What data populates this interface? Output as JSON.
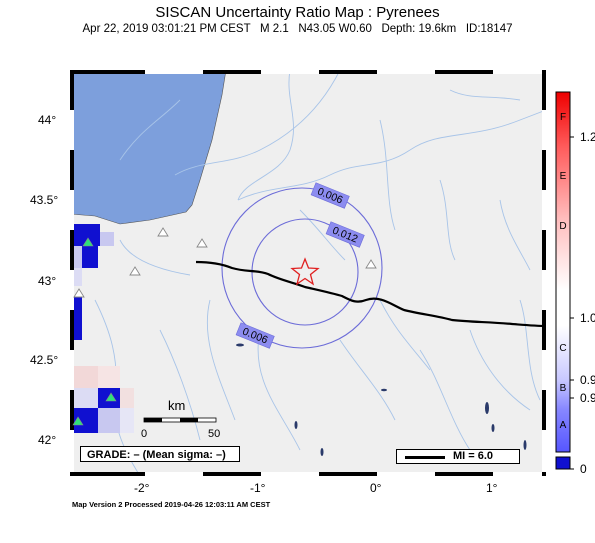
{
  "header": {
    "title": "SISCAN Uncertainty Ratio Map : Pyrenees",
    "subtitle": "Apr 22, 2019 03:01:21 PM CEST   M 2.1   N43.05 W0.60   Depth: 19.6km   ID:18147"
  },
  "axes": {
    "lat_labels": [
      "44°",
      "43.5°",
      "43°",
      "42.5°",
      "42°"
    ],
    "lon_labels": [
      "-2°",
      "-1°",
      "0°",
      "1°"
    ]
  },
  "contours": [
    {
      "label": "0.006"
    },
    {
      "label": "0.012"
    },
    {
      "label": "0.006"
    }
  ],
  "scale_bar": {
    "unit": "km",
    "min_label": "0",
    "max_label": "50"
  },
  "grade": {
    "text": "GRADE: – (Mean sigma: –)"
  },
  "legend": {
    "mi_text": "MI = 6.0"
  },
  "colorbar": {
    "letters": [
      "F",
      "E",
      "D",
      "C",
      "B",
      "A"
    ],
    "values": [
      "1.2",
      "1.0",
      "0.9",
      "0.9",
      "0"
    ]
  },
  "footer": {
    "text": "Map Version 2 Processed 2019-04-26 12:03:11 AM CEST"
  },
  "colors": {
    "sea": "#7d9fdc",
    "land": "#efefef",
    "rivers": "#a8c4e8",
    "contour": "#6c6cd8",
    "border": "#000000",
    "epicenter": "#e02020",
    "station": "#2ee07a"
  },
  "icons": {
    "epicenter": "star-icon",
    "station": "triangle-icon"
  }
}
